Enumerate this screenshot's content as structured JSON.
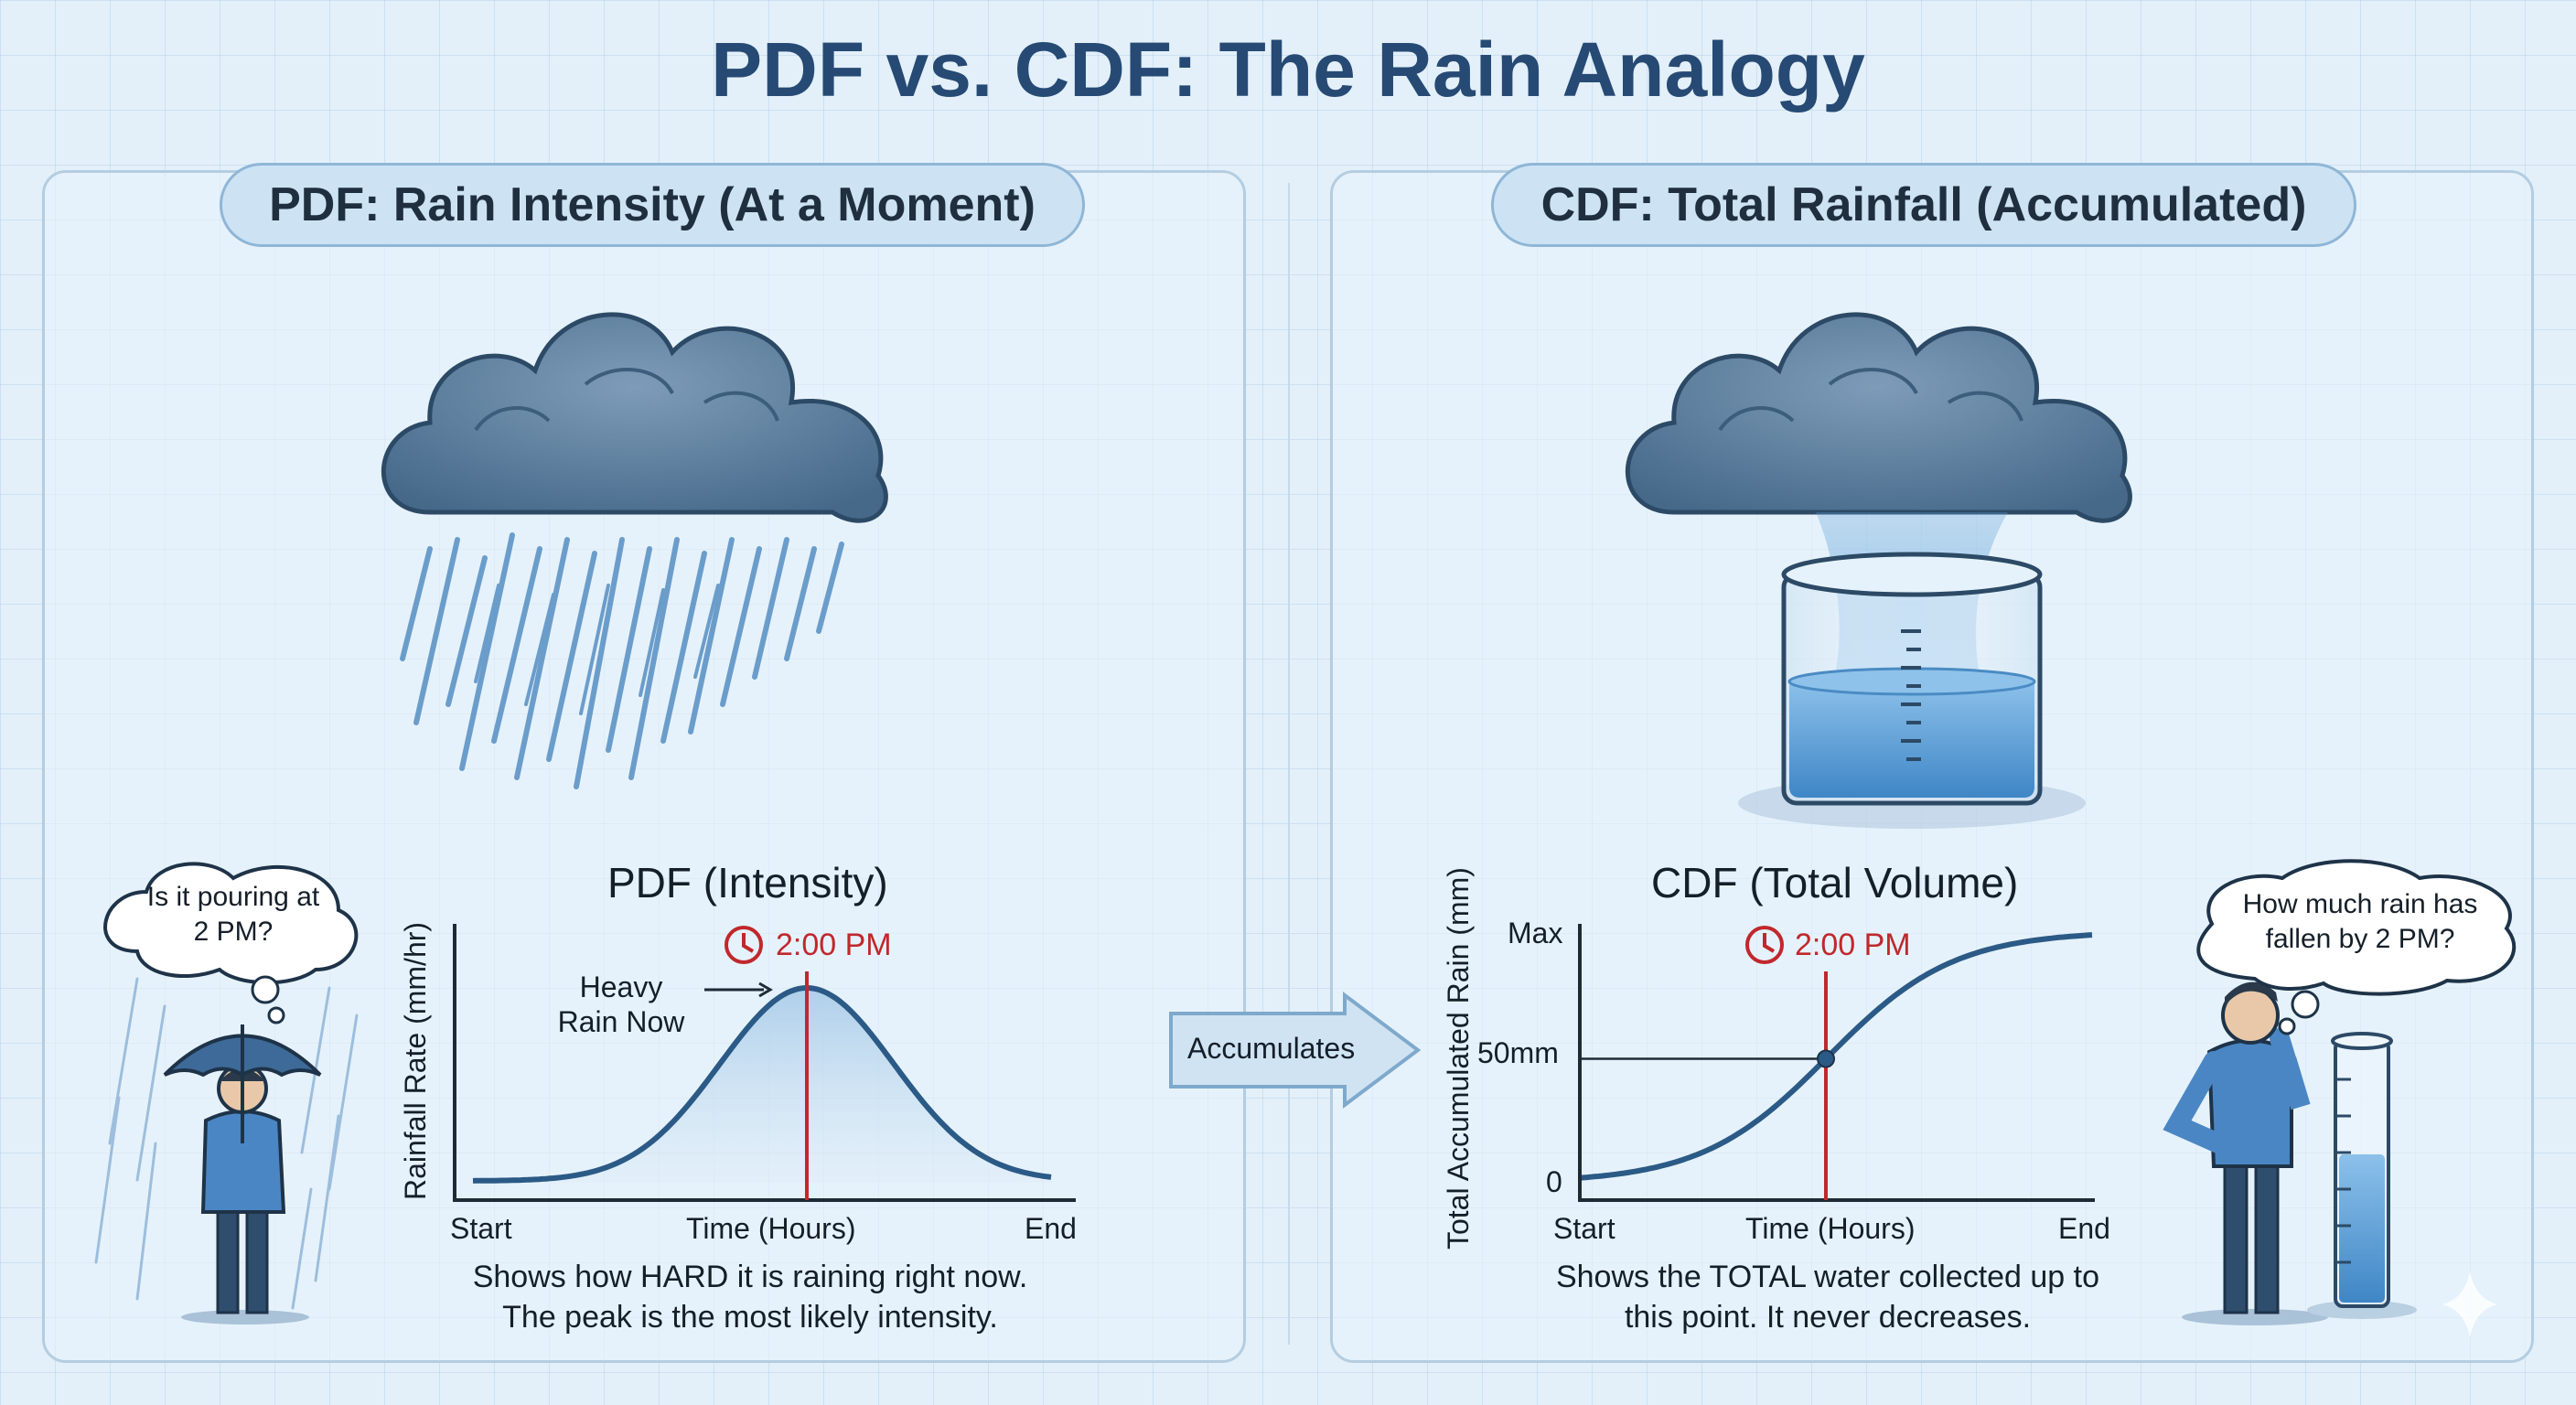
{
  "title": "PDF vs. CDF: The Rain Analogy",
  "pdf_panel": {
    "heading": "PDF: Rain Intensity (At a Moment)",
    "thought": "Is it pouring at 2 PM?",
    "chart_title": "PDF (Intensity)",
    "y_label": "Rainfall Rate (mm/hr)",
    "x_label": "Time (Hours)",
    "x_start": "Start",
    "x_end": "End",
    "time_marker": "2:00 PM",
    "peak_annotation": "Heavy Rain Now",
    "caption": "Shows how HARD it is raining right now. The peak is the most likely intensity."
  },
  "connector": {
    "label": "Accumulates"
  },
  "cdf_panel": {
    "heading": "CDF: Total Rainfall (Accumulated)",
    "thought": "How much rain has fallen by 2 PM?",
    "chart_title": "CDF (Total Volume)",
    "y_label": "Total Accumulated Rain (mm)",
    "x_label": "Time (Hours)",
    "x_start": "Start",
    "x_end": "End",
    "y_ticks": [
      "Max",
      "50mm",
      "0"
    ],
    "time_marker": "2:00 PM",
    "caption": "Shows the TOTAL water collected up to this point. It never decreases."
  },
  "colors": {
    "curve": "#2b5a86",
    "marker": "#c0282c",
    "cloud": "#5a7d9c",
    "water": "#5d9fd6",
    "person_shirt": "#4b86c4"
  }
}
